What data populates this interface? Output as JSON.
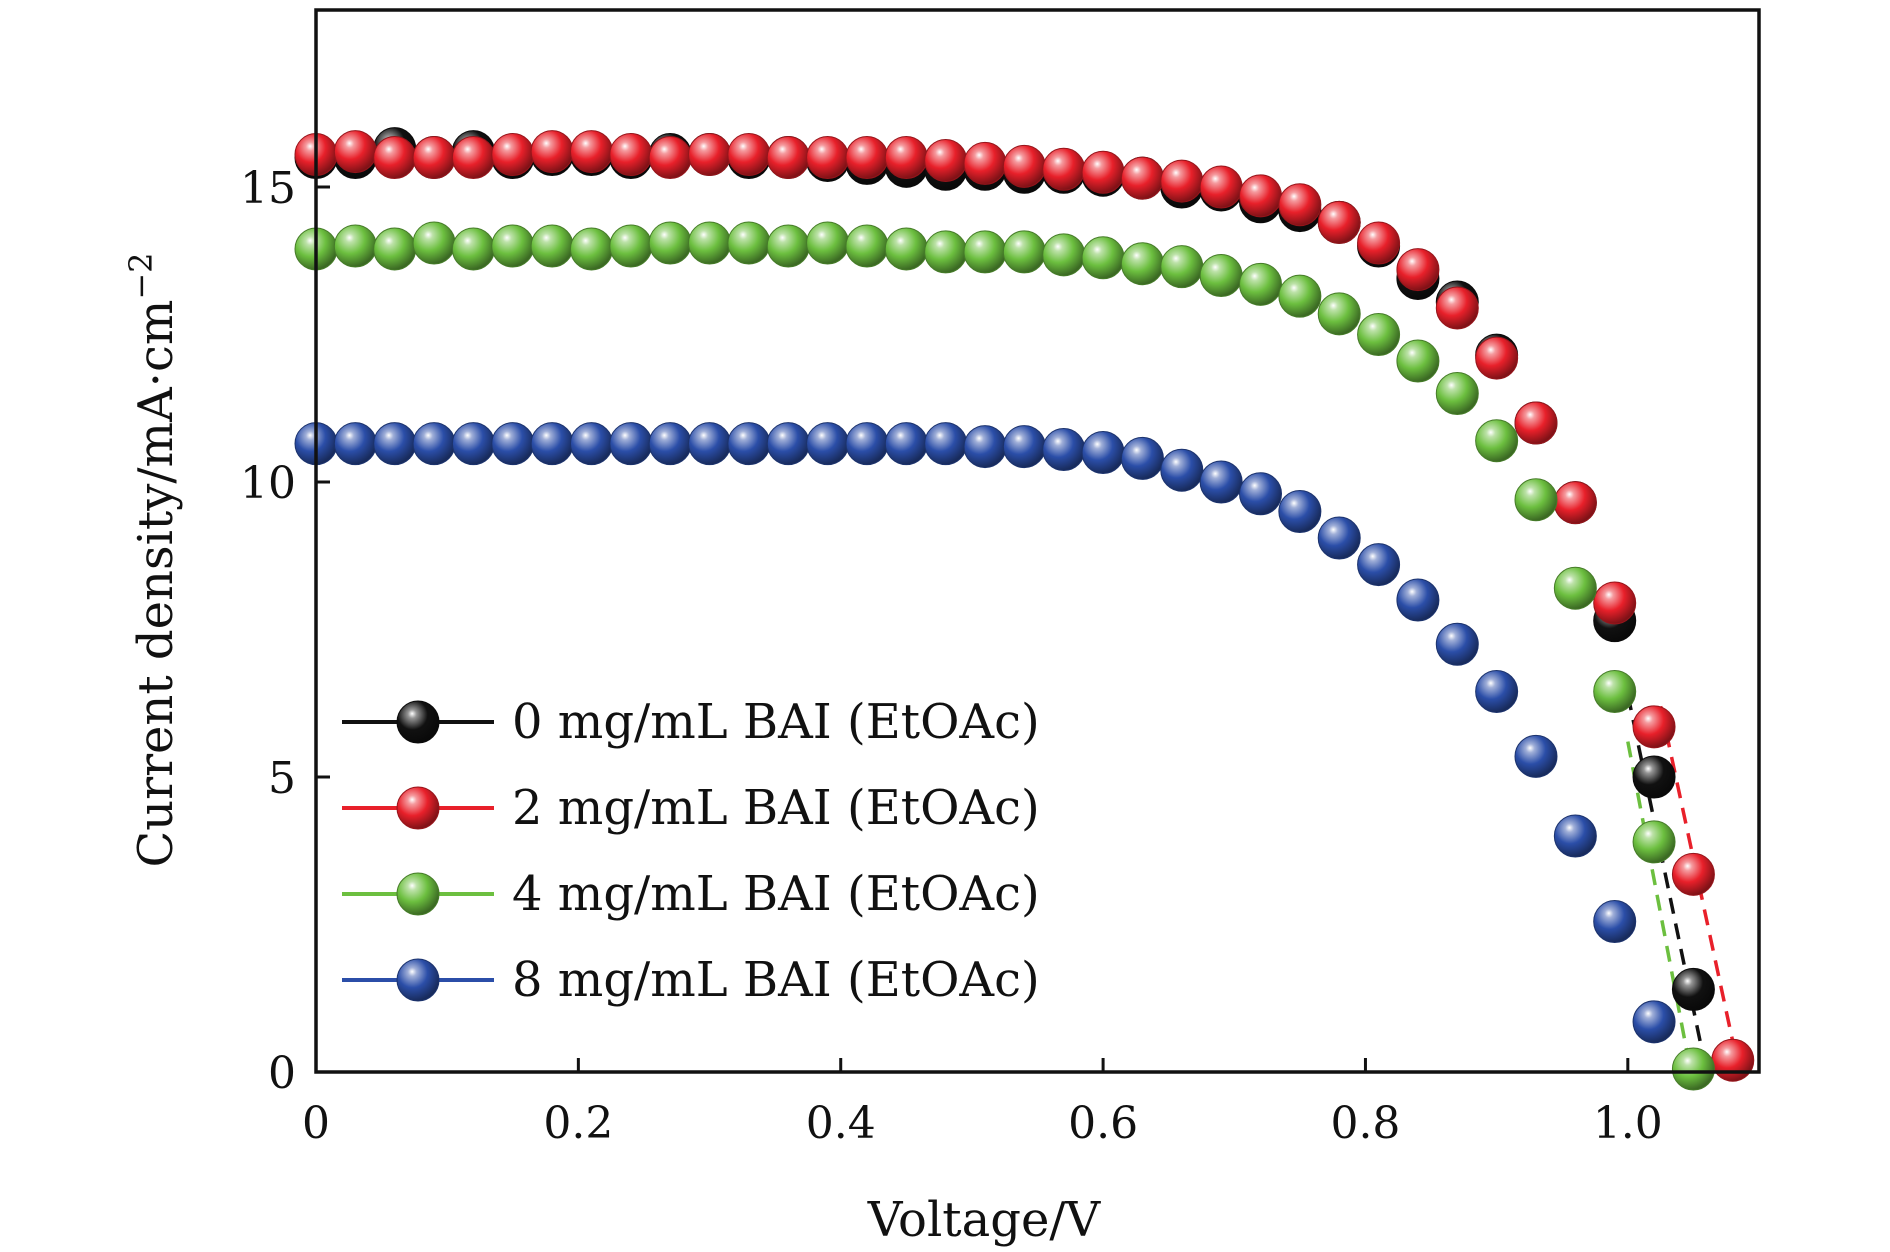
{
  "chart_data": {
    "type": "scatter",
    "xlabel": "Voltage/V",
    "ylabel": "Current density/mA·cm",
    "ylabel_sup": "−2",
    "xlim": [
      0,
      1.1
    ],
    "ylim": [
      0,
      18
    ],
    "xticks": [
      0,
      0.2,
      0.4,
      0.6,
      0.8,
      1.0
    ],
    "xtick_labels": [
      "0",
      "0.2",
      "0.4",
      "0.6",
      "0.8",
      "1.0"
    ],
    "yticks": [
      0,
      5,
      10,
      15
    ],
    "ytick_labels": [
      "0",
      "5",
      "10",
      "15"
    ],
    "grid": false,
    "legend_position": "lower-left",
    "series": [
      {
        "name": "0 mg/mL BAI (EtOAc)",
        "color": "#111111",
        "x": [
          0,
          0.03,
          0.06,
          0.09,
          0.12,
          0.15,
          0.18,
          0.21,
          0.24,
          0.27,
          0.3,
          0.33,
          0.36,
          0.39,
          0.42,
          0.45,
          0.48,
          0.51,
          0.54,
          0.57,
          0.6,
          0.63,
          0.66,
          0.69,
          0.72,
          0.75,
          0.78,
          0.81,
          0.84,
          0.87,
          0.9,
          0.93,
          0.96,
          0.99,
          1.02,
          1.05
        ],
        "y": [
          15.5,
          15.5,
          15.65,
          15.5,
          15.6,
          15.5,
          15.55,
          15.55,
          15.5,
          15.55,
          15.55,
          15.5,
          15.5,
          15.45,
          15.4,
          15.35,
          15.3,
          15.3,
          15.25,
          15.25,
          15.2,
          15.15,
          15.0,
          14.95,
          14.75,
          14.6,
          14.4,
          14.0,
          13.45,
          13.05,
          12.15,
          11.0,
          9.65,
          7.65,
          5.0,
          1.4
        ]
      },
      {
        "name": "2 mg/mL BAI (EtOAc)",
        "color": "#e8202a",
        "x": [
          0,
          0.03,
          0.06,
          0.09,
          0.12,
          0.15,
          0.18,
          0.21,
          0.24,
          0.27,
          0.3,
          0.33,
          0.36,
          0.39,
          0.42,
          0.45,
          0.48,
          0.51,
          0.54,
          0.57,
          0.6,
          0.63,
          0.66,
          0.69,
          0.72,
          0.75,
          0.78,
          0.81,
          0.84,
          0.87,
          0.9,
          0.93,
          0.96,
          0.99,
          1.02,
          1.05,
          1.08
        ],
        "y": [
          15.55,
          15.6,
          15.5,
          15.5,
          15.5,
          15.55,
          15.6,
          15.6,
          15.55,
          15.5,
          15.55,
          15.55,
          15.5,
          15.5,
          15.5,
          15.5,
          15.45,
          15.4,
          15.35,
          15.3,
          15.25,
          15.15,
          15.1,
          15.0,
          14.85,
          14.7,
          14.4,
          14.05,
          13.6,
          12.95,
          12.1,
          11.0,
          9.65,
          7.95,
          5.85,
          3.35,
          0.2
        ]
      },
      {
        "name": "4 mg/mL BAI (EtOAc)",
        "color": "#6cbf3f",
        "x": [
          0,
          0.03,
          0.06,
          0.09,
          0.12,
          0.15,
          0.18,
          0.21,
          0.24,
          0.27,
          0.3,
          0.33,
          0.36,
          0.39,
          0.42,
          0.45,
          0.48,
          0.51,
          0.54,
          0.57,
          0.6,
          0.63,
          0.66,
          0.69,
          0.72,
          0.75,
          0.78,
          0.81,
          0.84,
          0.87,
          0.9,
          0.93,
          0.96,
          0.99,
          1.02,
          1.05
        ],
        "y": [
          13.95,
          14.0,
          13.95,
          14.05,
          13.95,
          14.0,
          14.0,
          13.95,
          14.0,
          14.05,
          14.05,
          14.05,
          14.0,
          14.05,
          14.0,
          13.95,
          13.9,
          13.9,
          13.9,
          13.85,
          13.8,
          13.7,
          13.65,
          13.5,
          13.35,
          13.15,
          12.85,
          12.5,
          12.05,
          11.5,
          10.7,
          9.7,
          8.2,
          6.45,
          3.9,
          0.05
        ]
      },
      {
        "name": "8 mg/mL BAI (EtOAc)",
        "color": "#2b4ea8",
        "x": [
          0,
          0.03,
          0.06,
          0.09,
          0.12,
          0.15,
          0.18,
          0.21,
          0.24,
          0.27,
          0.3,
          0.33,
          0.36,
          0.39,
          0.42,
          0.45,
          0.48,
          0.51,
          0.54,
          0.57,
          0.6,
          0.63,
          0.66,
          0.69,
          0.72,
          0.75,
          0.78,
          0.81,
          0.84,
          0.87,
          0.9,
          0.93,
          0.96,
          0.99,
          1.02
        ],
        "y": [
          10.65,
          10.65,
          10.65,
          10.65,
          10.65,
          10.65,
          10.65,
          10.65,
          10.65,
          10.65,
          10.65,
          10.65,
          10.65,
          10.65,
          10.65,
          10.65,
          10.65,
          10.6,
          10.6,
          10.55,
          10.5,
          10.4,
          10.2,
          10.0,
          9.8,
          9.5,
          9.05,
          8.6,
          8.0,
          7.25,
          6.45,
          5.35,
          4.0,
          2.55,
          0.85
        ]
      }
    ],
    "fit_lines": [
      {
        "series": "0 mg/mL BAI (EtOAc)",
        "x": [
          1.0,
          1.06
        ],
        "y": [
          6.4,
          0
        ]
      },
      {
        "series": "2 mg/mL BAI (EtOAc)",
        "x": [
          1.025,
          1.085
        ],
        "y": [
          6.2,
          0
        ]
      },
      {
        "series": "4 mg/mL BAI (EtOAc)",
        "x": [
          1.0,
          1.048
        ],
        "y": [
          5.6,
          0
        ]
      }
    ]
  }
}
